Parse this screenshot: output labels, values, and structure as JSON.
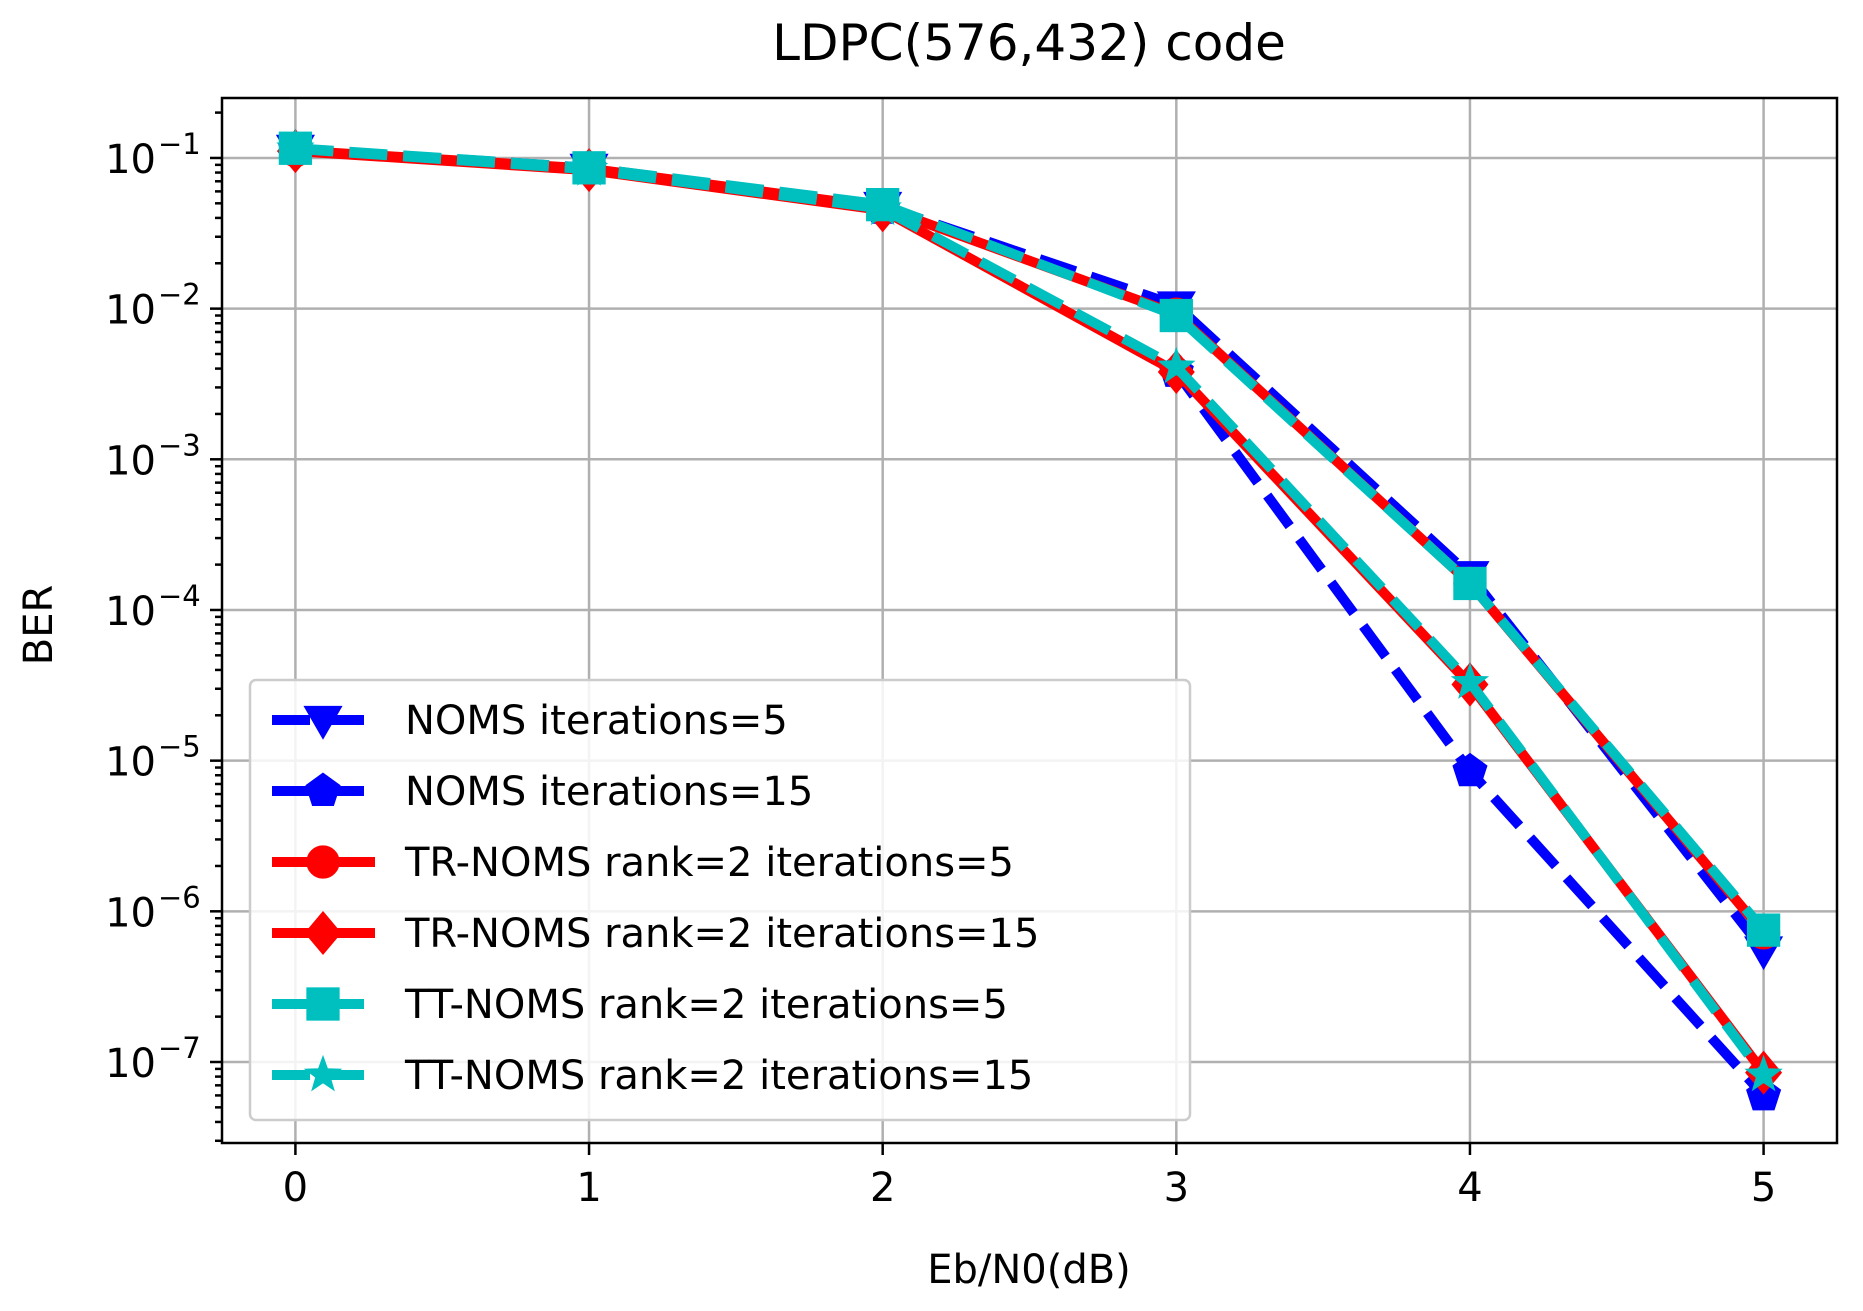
{
  "chart_data": {
    "type": "line",
    "title": "LDPC(576,432) code",
    "xlabel": "Eb/N0(dB)",
    "ylabel": "BER",
    "x": [
      0,
      1,
      2,
      3,
      4,
      5
    ],
    "xlim": [
      -0.25,
      5.25
    ],
    "ylim": [
      2.9e-08,
      0.25
    ],
    "yscale": "log",
    "xticks": [
      "0",
      "1",
      "2",
      "3",
      "4",
      "5"
    ],
    "yticks": [
      {
        "value": 0.1,
        "base": "10",
        "exp": "−1"
      },
      {
        "value": 0.01,
        "base": "10",
        "exp": "−2"
      },
      {
        "value": 0.001,
        "base": "10",
        "exp": "−3"
      },
      {
        "value": 0.0001,
        "base": "10",
        "exp": "−4"
      },
      {
        "value": 1e-05,
        "base": "10",
        "exp": "−5"
      },
      {
        "value": 1e-06,
        "base": "10",
        "exp": "−6"
      },
      {
        "value": 1e-07,
        "base": "10",
        "exp": "−7"
      }
    ],
    "grid": true,
    "legend_position": "lower-left",
    "series": [
      {
        "name": "NOMS iterations=5",
        "color": "#0000ff",
        "marker": "triangle-down",
        "dash": "dashed",
        "values": [
          0.115,
          0.086,
          0.048,
          0.0105,
          0.00017,
          5.5e-07
        ]
      },
      {
        "name": "NOMS iterations=15",
        "color": "#0000ff",
        "marker": "pentagon",
        "dash": "dashed",
        "values": [
          0.115,
          0.085,
          0.046,
          0.0038,
          8.5e-06,
          6e-08
        ]
      },
      {
        "name": "TR-NOMS rank=2 iterations=5",
        "color": "#ff0000",
        "marker": "circle",
        "dash": "solid",
        "values": [
          0.112,
          0.085,
          0.047,
          0.0092,
          0.00015,
          7.2e-07
        ]
      },
      {
        "name": "TR-NOMS rank=2 iterations=15",
        "color": "#ff0000",
        "marker": "diamond",
        "dash": "solid",
        "values": [
          0.111,
          0.083,
          0.045,
          0.0038,
          3.2e-05,
          8.5e-08
        ]
      },
      {
        "name": "TT-NOMS rank=2 iterations=5",
        "color": "#00bfbf",
        "marker": "square",
        "dash": "dashed",
        "values": [
          0.116,
          0.086,
          0.049,
          0.009,
          0.00015,
          7.5e-07
        ]
      },
      {
        "name": "TT-NOMS rank=2 iterations=15",
        "color": "#00bfbf",
        "marker": "star",
        "dash": "dashed",
        "values": [
          0.115,
          0.084,
          0.046,
          0.0041,
          3.3e-05,
          8.2e-08
        ]
      }
    ]
  }
}
